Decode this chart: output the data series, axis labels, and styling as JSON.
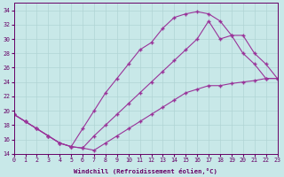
{
  "xlabel": "Windchill (Refroidissement éolien,°C)",
  "xlim": [
    0,
    23
  ],
  "ylim": [
    14,
    35
  ],
  "xticks": [
    0,
    1,
    2,
    3,
    4,
    5,
    6,
    7,
    8,
    9,
    10,
    11,
    12,
    13,
    14,
    15,
    16,
    17,
    18,
    19,
    20,
    21,
    22,
    23
  ],
  "yticks": [
    14,
    16,
    18,
    20,
    22,
    24,
    26,
    28,
    30,
    32,
    34
  ],
  "bg_color": "#c8e8e8",
  "grid_color": "#b0d4d4",
  "line_color": "#993399",
  "curve_upper_x": [
    0,
    1,
    2,
    3,
    4,
    5,
    6,
    7,
    8,
    9,
    10,
    11,
    12,
    13,
    14,
    15,
    16,
    17,
    18,
    19,
    20,
    21,
    22,
    23
  ],
  "curve_upper_y": [
    19.5,
    18.5,
    17.5,
    16.5,
    15.5,
    15.0,
    17.5,
    20.0,
    22.5,
    24.5,
    26.5,
    28.5,
    29.5,
    31.5,
    33.0,
    33.5,
    33.8,
    33.5,
    32.5,
    30.5,
    30.5,
    28.0,
    26.5,
    24.5
  ],
  "curve_mid_x": [
    0,
    1,
    2,
    3,
    4,
    5,
    6,
    7,
    8,
    9,
    10,
    11,
    12,
    13,
    14,
    15,
    16,
    17,
    18,
    19,
    20,
    21,
    22,
    23
  ],
  "curve_mid_y": [
    19.5,
    18.5,
    17.5,
    16.5,
    15.5,
    15.0,
    14.8,
    16.5,
    18.0,
    19.5,
    21.0,
    22.5,
    24.0,
    25.5,
    27.0,
    28.5,
    30.0,
    32.5,
    30.0,
    30.5,
    28.0,
    26.5,
    24.5,
    24.5
  ],
  "curve_lower_x": [
    0,
    1,
    2,
    3,
    4,
    5,
    6,
    7,
    8,
    9,
    10,
    11,
    12,
    13,
    14,
    15,
    16,
    17,
    18,
    19,
    20,
    21,
    22,
    23
  ],
  "curve_lower_y": [
    19.5,
    18.5,
    17.5,
    16.5,
    15.5,
    15.0,
    14.8,
    14.5,
    15.5,
    16.5,
    17.5,
    18.5,
    19.5,
    20.5,
    21.5,
    22.5,
    23.0,
    23.5,
    23.5,
    23.8,
    24.0,
    24.2,
    24.5,
    24.5
  ]
}
